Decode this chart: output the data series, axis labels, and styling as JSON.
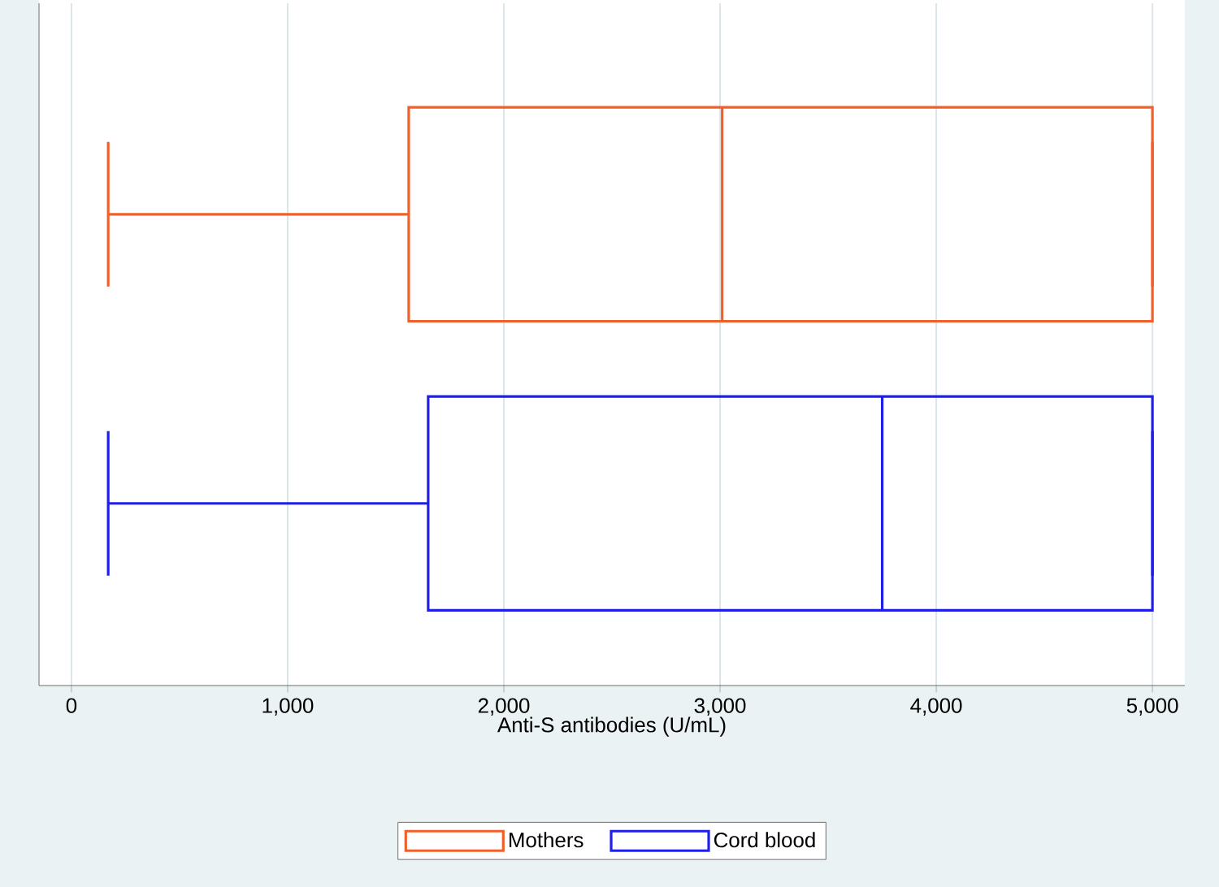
{
  "chart_data": {
    "type": "box",
    "orientation": "horizontal",
    "xlabel": "Anti-S antibodies (U/mL)",
    "categories": [
      null
    ],
    "xlim": [
      -150,
      5150
    ],
    "xticks": [
      0,
      {
        "value": 1000,
        "label": "1,000"
      },
      {
        "value": 2000,
        "label": "2,000"
      },
      {
        "value": 3000,
        "label": "3,000"
      },
      {
        "value": 4000,
        "label": "4,000"
      },
      {
        "value": 5000,
        "label": "5,000"
      }
    ],
    "grid": "x",
    "legend": "bottom",
    "series": [
      {
        "name": "Mothers",
        "color": "#f0602a",
        "boxes": [
          {
            "low": 170,
            "q1": 1560,
            "median": 3010,
            "q3": 5000,
            "high": 5000
          }
        ]
      },
      {
        "name": "Cord blood",
        "color": "#1f1fe8",
        "boxes": [
          {
            "low": 170,
            "q1": 1650,
            "median": 3750,
            "q3": 5000,
            "high": 5000
          }
        ]
      }
    ]
  }
}
